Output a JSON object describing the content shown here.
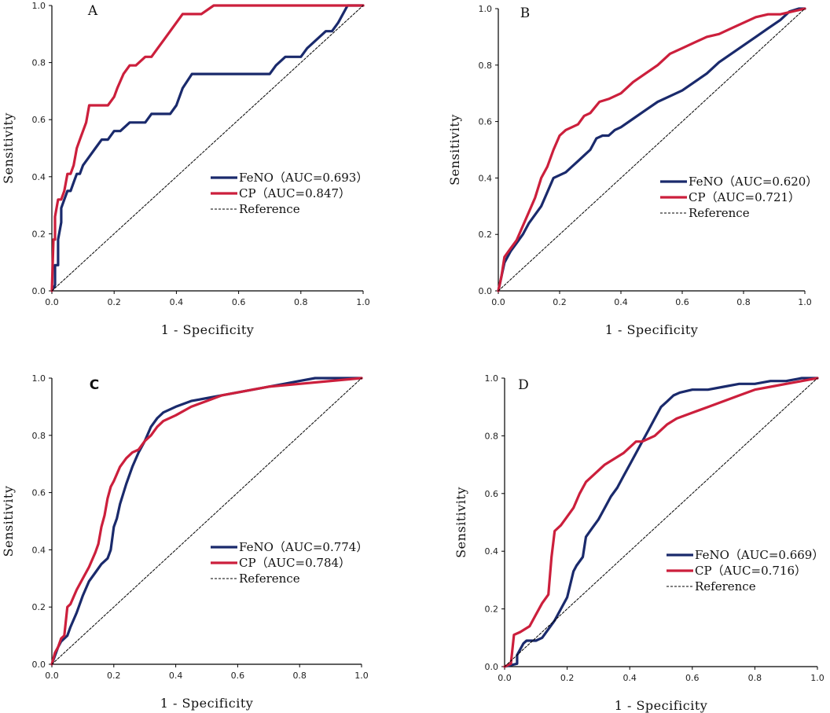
{
  "colors": {
    "feno": "#1a2a6c",
    "cp": "#cc1f3c",
    "reference": "#000000",
    "axis": "#000000"
  },
  "chart_data": [
    {
      "type": "line",
      "panel": "A",
      "xlabel": "1 - Specificity",
      "ylabel": "Sensitivity",
      "xlim": [
        0,
        1
      ],
      "ylim": [
        0,
        1
      ],
      "xticks": [
        "0.0",
        "0.2",
        "0.4",
        "0.6",
        "0.8",
        "1.0"
      ],
      "yticks": [
        "0.0",
        "0.2",
        "0.4",
        "0.6",
        "0.8",
        "1.0"
      ],
      "legend_position": "lower-right",
      "series": [
        {
          "name": "FeNO",
          "legend": "FeNO（AUC=0.693）",
          "color": "#1a2a6c",
          "x": [
            0,
            0.01,
            0.01,
            0.02,
            0.02,
            0.03,
            0.03,
            0.04,
            0.05,
            0.06,
            0.07,
            0.08,
            0.09,
            0.1,
            0.12,
            0.14,
            0.16,
            0.18,
            0.2,
            0.22,
            0.25,
            0.28,
            0.3,
            0.32,
            0.35,
            0.38,
            0.4,
            0.42,
            0.45,
            0.5,
            0.55,
            0.6,
            0.65,
            0.7,
            0.72,
            0.75,
            0.8,
            0.82,
            0.85,
            0.88,
            0.9,
            0.92,
            0.95,
            1.0
          ],
          "y": [
            0,
            0.02,
            0.09,
            0.09,
            0.18,
            0.24,
            0.29,
            0.32,
            0.35,
            0.35,
            0.38,
            0.41,
            0.41,
            0.44,
            0.47,
            0.5,
            0.53,
            0.53,
            0.56,
            0.56,
            0.59,
            0.59,
            0.59,
            0.62,
            0.62,
            0.62,
            0.65,
            0.71,
            0.76,
            0.76,
            0.76,
            0.76,
            0.76,
            0.76,
            0.79,
            0.82,
            0.82,
            0.85,
            0.88,
            0.91,
            0.91,
            0.94,
            1.0,
            1.0
          ]
        },
        {
          "name": "CP",
          "legend": "CP（AUC=0.847）",
          "color": "#cc1f3c",
          "x": [
            0,
            0.005,
            0.01,
            0.01,
            0.02,
            0.03,
            0.04,
            0.05,
            0.06,
            0.07,
            0.08,
            0.09,
            0.1,
            0.11,
            0.12,
            0.14,
            0.16,
            0.18,
            0.2,
            0.21,
            0.23,
            0.25,
            0.27,
            0.3,
            0.32,
            0.34,
            0.36,
            0.38,
            0.4,
            0.42,
            0.44,
            0.48,
            0.52,
            0.6,
            0.7,
            0.8,
            0.9,
            1.0
          ],
          "y": [
            0,
            0.18,
            0.18,
            0.26,
            0.32,
            0.32,
            0.35,
            0.41,
            0.41,
            0.44,
            0.5,
            0.53,
            0.56,
            0.59,
            0.65,
            0.65,
            0.65,
            0.65,
            0.68,
            0.71,
            0.76,
            0.79,
            0.79,
            0.82,
            0.82,
            0.85,
            0.88,
            0.91,
            0.94,
            0.97,
            0.97,
            0.97,
            1.0,
            1.0,
            1.0,
            1.0,
            1.0,
            1.0
          ]
        },
        {
          "name": "Reference",
          "legend": "Reference",
          "color": "#000000",
          "dashed": true,
          "x": [
            0,
            1
          ],
          "y": [
            0,
            1
          ]
        }
      ]
    },
    {
      "type": "line",
      "panel": "B",
      "xlabel": "1 - Specificity",
      "ylabel": "Sensitivity",
      "xlim": [
        0,
        1
      ],
      "ylim": [
        0,
        1
      ],
      "xticks": [
        "0.0",
        "0.2",
        "0.4",
        "0.6",
        "0.8",
        "1.0"
      ],
      "yticks": [
        "0.0",
        "0.2",
        "0.4",
        "0.6",
        "0.8",
        "1.0"
      ],
      "legend_position": "lower-right",
      "series": [
        {
          "name": "FeNO",
          "legend": "FeNO（AUC=0.620）",
          "color": "#1a2a6c",
          "x": [
            0,
            0.02,
            0.04,
            0.06,
            0.08,
            0.1,
            0.12,
            0.14,
            0.16,
            0.18,
            0.2,
            0.22,
            0.24,
            0.26,
            0.28,
            0.3,
            0.32,
            0.34,
            0.36,
            0.38,
            0.4,
            0.44,
            0.48,
            0.52,
            0.56,
            0.6,
            0.64,
            0.68,
            0.72,
            0.76,
            0.8,
            0.84,
            0.88,
            0.92,
            0.95,
            0.98,
            1.0
          ],
          "y": [
            0,
            0.1,
            0.14,
            0.17,
            0.2,
            0.24,
            0.27,
            0.3,
            0.35,
            0.4,
            0.41,
            0.42,
            0.44,
            0.46,
            0.48,
            0.5,
            0.54,
            0.55,
            0.55,
            0.57,
            0.58,
            0.61,
            0.64,
            0.67,
            0.69,
            0.71,
            0.74,
            0.77,
            0.81,
            0.84,
            0.87,
            0.9,
            0.93,
            0.96,
            0.99,
            1.0,
            1.0
          ]
        },
        {
          "name": "CP",
          "legend": "CP（AUC=0.721）",
          "color": "#cc1f3c",
          "x": [
            0,
            0.01,
            0.02,
            0.04,
            0.06,
            0.08,
            0.1,
            0.12,
            0.14,
            0.16,
            0.18,
            0.2,
            0.22,
            0.24,
            0.26,
            0.28,
            0.3,
            0.33,
            0.36,
            0.4,
            0.44,
            0.48,
            0.52,
            0.56,
            0.6,
            0.64,
            0.68,
            0.72,
            0.76,
            0.8,
            0.84,
            0.88,
            0.92,
            0.96,
            1.0
          ],
          "y": [
            0,
            0.05,
            0.12,
            0.15,
            0.18,
            0.23,
            0.28,
            0.33,
            0.4,
            0.44,
            0.5,
            0.55,
            0.57,
            0.58,
            0.59,
            0.62,
            0.63,
            0.67,
            0.68,
            0.7,
            0.74,
            0.77,
            0.8,
            0.84,
            0.86,
            0.88,
            0.9,
            0.91,
            0.93,
            0.95,
            0.97,
            0.98,
            0.98,
            0.99,
            1.0
          ]
        },
        {
          "name": "Reference",
          "legend": "Reference",
          "color": "#000000",
          "dashed": true,
          "x": [
            0,
            1
          ],
          "y": [
            0,
            1
          ]
        }
      ]
    },
    {
      "type": "line",
      "panel": "C",
      "xlabel": "1 - Specificity",
      "ylabel": "Sensitivity",
      "xlim": [
        0,
        1
      ],
      "ylim": [
        0,
        1
      ],
      "xticks": [
        "0.0",
        "0.2",
        "0.4",
        "0.6",
        "0.8",
        "1.0"
      ],
      "yticks": [
        "0.0",
        "0.2",
        "0.4",
        "0.6",
        "0.8",
        "1.0"
      ],
      "legend_position": "lower-right",
      "series": [
        {
          "name": "FeNO",
          "legend": "FeNO（AUC=0.774）",
          "color": "#1a2a6c",
          "x": [
            0,
            0.01,
            0.02,
            0.03,
            0.04,
            0.05,
            0.06,
            0.08,
            0.1,
            0.12,
            0.14,
            0.16,
            0.18,
            0.19,
            0.2,
            0.21,
            0.22,
            0.24,
            0.26,
            0.28,
            0.3,
            0.32,
            0.34,
            0.36,
            0.4,
            0.45,
            0.5,
            0.55,
            0.6,
            0.65,
            0.7,
            0.75,
            0.8,
            0.85,
            0.9,
            0.95,
            1.0
          ],
          "y": [
            0,
            0.03,
            0.06,
            0.08,
            0.09,
            0.1,
            0.13,
            0.18,
            0.24,
            0.29,
            0.32,
            0.35,
            0.37,
            0.4,
            0.48,
            0.51,
            0.56,
            0.63,
            0.69,
            0.74,
            0.78,
            0.83,
            0.86,
            0.88,
            0.9,
            0.92,
            0.93,
            0.94,
            0.95,
            0.96,
            0.97,
            0.98,
            0.99,
            1.0,
            1.0,
            1.0,
            1.0
          ]
        },
        {
          "name": "CP",
          "legend": "CP（AUC=0.784）",
          "color": "#cc1f3c",
          "x": [
            0,
            0.01,
            0.02,
            0.03,
            0.04,
            0.05,
            0.06,
            0.08,
            0.1,
            0.12,
            0.14,
            0.15,
            0.16,
            0.17,
            0.18,
            0.19,
            0.2,
            0.22,
            0.24,
            0.26,
            0.28,
            0.3,
            0.32,
            0.34,
            0.36,
            0.4,
            0.45,
            0.5,
            0.55,
            0.6,
            0.7,
            0.8,
            0.9,
            1.0
          ],
          "y": [
            0,
            0.04,
            0.06,
            0.09,
            0.1,
            0.2,
            0.21,
            0.26,
            0.3,
            0.34,
            0.39,
            0.42,
            0.48,
            0.52,
            0.58,
            0.62,
            0.64,
            0.69,
            0.72,
            0.74,
            0.75,
            0.78,
            0.8,
            0.83,
            0.85,
            0.87,
            0.9,
            0.92,
            0.94,
            0.95,
            0.97,
            0.98,
            0.99,
            1.0
          ]
        },
        {
          "name": "Reference",
          "legend": "Reference",
          "color": "#000000",
          "dashed": true,
          "x": [
            0,
            1
          ],
          "y": [
            0,
            1
          ]
        }
      ]
    },
    {
      "type": "line",
      "panel": "D",
      "xlabel": "1 - Specificity",
      "ylabel": "Sensitivity",
      "xlim": [
        0,
        1
      ],
      "ylim": [
        0,
        1
      ],
      "xticks": [
        "0.0",
        "0.2",
        "0.4",
        "0.6",
        "0.8",
        "1.0"
      ],
      "yticks": [
        "0.0",
        "0.2",
        "0.4",
        "0.6",
        "0.8",
        "1.0"
      ],
      "legend_position": "lower-right",
      "series": [
        {
          "name": "FeNO",
          "legend": "FeNO（AUC=0.669）",
          "color": "#1a2a6c",
          "x": [
            0,
            0.04,
            0.04,
            0.06,
            0.07,
            0.1,
            0.12,
            0.16,
            0.17,
            0.2,
            0.22,
            0.23,
            0.25,
            0.26,
            0.28,
            0.3,
            0.32,
            0.34,
            0.36,
            0.38,
            0.4,
            0.42,
            0.44,
            0.46,
            0.48,
            0.5,
            0.52,
            0.54,
            0.56,
            0.6,
            0.65,
            0.7,
            0.75,
            0.8,
            0.85,
            0.9,
            0.95,
            1.0
          ],
          "y": [
            0,
            0.01,
            0.04,
            0.08,
            0.09,
            0.09,
            0.1,
            0.16,
            0.18,
            0.24,
            0.33,
            0.35,
            0.38,
            0.45,
            0.48,
            0.51,
            0.55,
            0.59,
            0.62,
            0.66,
            0.7,
            0.74,
            0.78,
            0.82,
            0.86,
            0.9,
            0.92,
            0.94,
            0.95,
            0.96,
            0.96,
            0.97,
            0.98,
            0.98,
            0.99,
            0.99,
            1.0,
            1.0
          ]
        },
        {
          "name": "CP",
          "legend": "CP（AUC=0.716）",
          "color": "#cc1f3c",
          "x": [
            0,
            0.02,
            0.03,
            0.05,
            0.08,
            0.1,
            0.12,
            0.14,
            0.15,
            0.16,
            0.18,
            0.2,
            0.22,
            0.24,
            0.26,
            0.28,
            0.3,
            0.32,
            0.35,
            0.38,
            0.4,
            0.42,
            0.44,
            0.46,
            0.48,
            0.5,
            0.52,
            0.55,
            0.6,
            0.65,
            0.7,
            0.75,
            0.8,
            0.85,
            0.9,
            0.95,
            1.0
          ],
          "y": [
            0,
            0.01,
            0.11,
            0.12,
            0.14,
            0.18,
            0.22,
            0.25,
            0.38,
            0.47,
            0.49,
            0.52,
            0.55,
            0.6,
            0.64,
            0.66,
            0.68,
            0.7,
            0.72,
            0.74,
            0.76,
            0.78,
            0.78,
            0.79,
            0.8,
            0.82,
            0.84,
            0.86,
            0.88,
            0.9,
            0.92,
            0.94,
            0.96,
            0.97,
            0.98,
            0.99,
            1.0
          ]
        },
        {
          "name": "Reference",
          "legend": "Reference",
          "color": "#000000",
          "dashed": true,
          "x": [
            0,
            1
          ],
          "y": [
            0,
            1
          ]
        }
      ]
    }
  ]
}
